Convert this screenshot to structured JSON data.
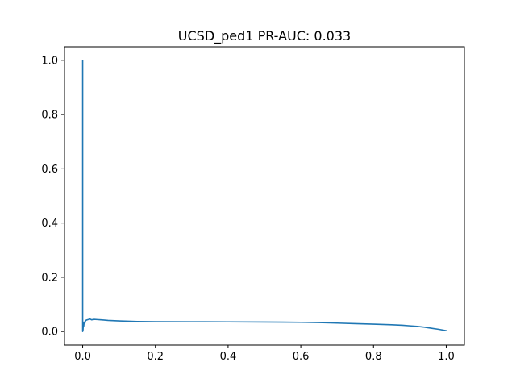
{
  "chart_data": {
    "type": "line",
    "title": "UCSD_ped1 PR-AUC: 0.033",
    "xlabel": "",
    "ylabel": "",
    "xlim": [
      -0.05,
      1.05
    ],
    "ylim": [
      -0.05,
      1.05
    ],
    "grid": false,
    "legend": "none",
    "x_ticks": [
      0.0,
      0.2,
      0.4,
      0.6,
      0.8,
      1.0
    ],
    "x_tick_labels": [
      "0.0",
      "0.2",
      "0.4",
      "0.6",
      "0.8",
      "1.0"
    ],
    "y_ticks": [
      0.0,
      0.2,
      0.4,
      0.6,
      0.8,
      1.0
    ],
    "y_tick_labels": [
      "0.0",
      "0.2",
      "0.4",
      "0.6",
      "0.8",
      "1.0"
    ],
    "series": [
      {
        "color": "#1f77b4",
        "x": [
          0.0,
          0.0,
          0.0,
          0.001,
          0.002,
          0.003,
          0.004,
          0.006,
          0.008,
          0.01,
          0.015,
          0.02,
          0.025,
          0.03,
          0.04,
          0.05,
          0.07,
          0.1,
          0.15,
          0.2,
          0.3,
          0.4,
          0.5,
          0.55,
          0.6,
          0.65,
          0.7,
          0.75,
          0.8,
          0.85,
          0.88,
          0.9,
          0.92,
          0.94,
          0.96,
          0.98,
          1.0
        ],
        "y": [
          0.0,
          1.0,
          0.02,
          0.005,
          0.03,
          0.02,
          0.035,
          0.03,
          0.04,
          0.042,
          0.044,
          0.046,
          0.043,
          0.045,
          0.044,
          0.043,
          0.041,
          0.039,
          0.037,
          0.036,
          0.0358,
          0.0355,
          0.035,
          0.0345,
          0.034,
          0.033,
          0.031,
          0.029,
          0.027,
          0.025,
          0.023,
          0.021,
          0.019,
          0.016,
          0.012,
          0.008,
          0.003
        ]
      }
    ]
  },
  "colors": {
    "line": "#1f77b4",
    "axes": "#000000",
    "background": "#ffffff"
  }
}
